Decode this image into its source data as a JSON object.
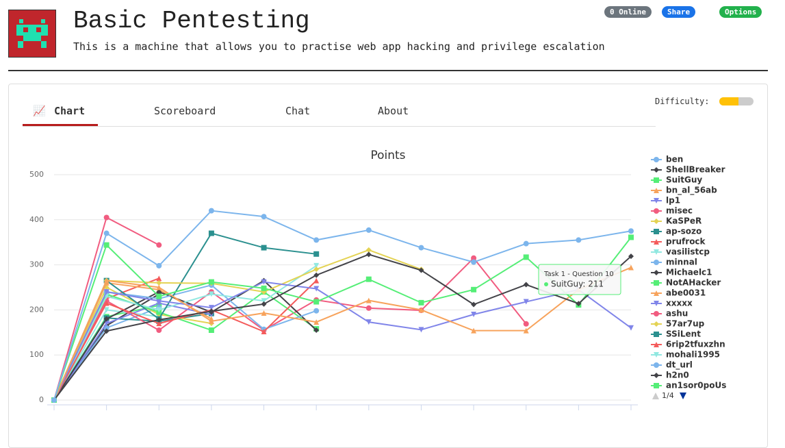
{
  "header": {
    "title": "Basic Pentesting",
    "subtitle": "This is a machine that allows you to practise web app hacking and privilege escalation",
    "buttons": [
      "0 Online",
      "Share",
      "Options"
    ]
  },
  "tabs": [
    "Chart",
    "Scoreboard",
    "Chat",
    "About"
  ],
  "difficulty_label": "Difficulty:",
  "legend_pager": "1/4",
  "tooltip": {
    "title": "Task 1 - Question 10",
    "label": "SuitGuy: 211"
  },
  "chart_data": {
    "type": "line",
    "title": "Points",
    "categories": [
      null,
      null,
      null,
      null,
      null,
      null,
      null,
      null,
      null,
      null,
      null,
      null
    ],
    "ylim": [
      0,
      500
    ],
    "yticks": [
      0,
      100,
      200,
      300,
      400,
      500
    ],
    "grid": true,
    "series": [
      {
        "name": "ben",
        "color": "#7cb5ec",
        "values": [
          0,
          370,
          298,
          420,
          407,
          355,
          377,
          338,
          306,
          347,
          355,
          375
        ]
      },
      {
        "name": "ShellBreaker",
        "color": "#434348",
        "values": [
          0,
          153,
          178,
          197,
          213,
          277,
          323,
          288,
          212,
          256,
          214,
          319
        ]
      },
      {
        "name": "SuitGuy",
        "color": "#55ee77",
        "values": [
          0,
          344,
          230,
          262,
          248,
          218,
          268,
          216,
          245,
          317,
          211,
          361
        ]
      },
      {
        "name": "bn_al_56ab",
        "color": "#f7a35c",
        "values": [
          0,
          265,
          250,
          175,
          193,
          173,
          221,
          200,
          154,
          154,
          245,
          294
        ]
      },
      {
        "name": "lp1",
        "color": "#8085e9",
        "values": [
          0,
          240,
          220,
          205,
          262,
          247,
          173,
          156,
          190,
          218,
          245,
          160
        ]
      },
      {
        "name": "misec",
        "color": "#f15c80",
        "values": [
          0,
          405,
          344,
          null,
          null,
          null,
          null,
          null,
          null,
          null,
          null,
          null
        ]
      },
      {
        "name": "KaSPeR",
        "color": "#e4d354",
        "values": [
          0,
          265,
          260,
          259,
          240,
          290,
          333,
          290,
          null,
          null,
          null,
          null
        ]
      },
      {
        "name": "ap-sozo",
        "color": "#2b908f",
        "values": [
          0,
          265,
          180,
          370,
          338,
          324,
          null,
          null,
          null,
          null,
          null,
          null
        ]
      },
      {
        "name": "prufrock",
        "color": "#f45b5b",
        "values": [
          0,
          215,
          170,
          200,
          152,
          265,
          null,
          null,
          null,
          null,
          null,
          null
        ]
      },
      {
        "name": "vasilistcp",
        "color": "#91e8e1",
        "values": [
          0,
          230,
          200,
          235,
          220,
          298,
          null,
          null,
          null,
          null,
          null,
          null
        ]
      },
      {
        "name": "minnal",
        "color": "#7cb5ec",
        "values": [
          0,
          240,
          225,
          255,
          157,
          198,
          null,
          null,
          null,
          null,
          null,
          null
        ]
      },
      {
        "name": "Michaelc1",
        "color": "#434348",
        "values": [
          0,
          180,
          240,
          195,
          265,
          155,
          null,
          null,
          null,
          null,
          null,
          null
        ]
      },
      {
        "name": "NotAHacker",
        "color": "#55ee77",
        "values": [
          0,
          235,
          195,
          155,
          240,
          158,
          null,
          null,
          null,
          null,
          null,
          null
        ]
      },
      {
        "name": "abe0031",
        "color": "#f7a35c",
        "values": [
          0,
          260,
          245,
          180,
          null,
          null,
          null,
          null,
          null,
          null,
          null,
          null
        ]
      },
      {
        "name": "xxxxx",
        "color": "#8085e9",
        "values": [
          0,
          170,
          215,
          190,
          null,
          null,
          null,
          null,
          null,
          null,
          null,
          null
        ]
      },
      {
        "name": "ashu",
        "color": "#f15c80",
        "values": [
          0,
          220,
          155,
          240,
          155,
          222,
          204,
          199,
          315,
          169,
          null,
          null
        ]
      },
      {
        "name": "57ar7up",
        "color": "#e4d354",
        "values": [
          0,
          250,
          190,
          170,
          null,
          null,
          null,
          null,
          null,
          null,
          null,
          null
        ]
      },
      {
        "name": "SSiLent",
        "color": "#2b908f",
        "values": [
          0,
          182,
          175,
          192,
          null,
          null,
          null,
          null,
          null,
          null,
          null,
          null
        ]
      },
      {
        "name": "6rip2tfuxzhn",
        "color": "#f45b5b",
        "values": [
          0,
          225,
          270,
          null,
          null,
          null,
          null,
          null,
          null,
          null,
          null,
          null
        ]
      },
      {
        "name": "mohali1995",
        "color": "#91e8e1",
        "values": [
          0,
          200,
          185,
          null,
          null,
          null,
          null,
          null,
          null,
          null,
          null,
          null
        ]
      },
      {
        "name": "dt_url",
        "color": "#7cb5ec",
        "values": [
          0,
          160,
          205,
          null,
          null,
          null,
          null,
          null,
          null,
          null,
          null,
          null
        ]
      },
      {
        "name": "h2n0",
        "color": "#434348",
        "values": [
          0,
          165,
          235,
          null,
          null,
          null,
          null,
          null,
          null,
          null,
          null,
          null
        ]
      },
      {
        "name": "an1sor0poUs",
        "color": "#55ee77",
        "values": [
          0,
          185,
          210,
          null,
          null,
          null,
          null,
          null,
          null,
          null,
          null,
          null
        ]
      }
    ]
  }
}
